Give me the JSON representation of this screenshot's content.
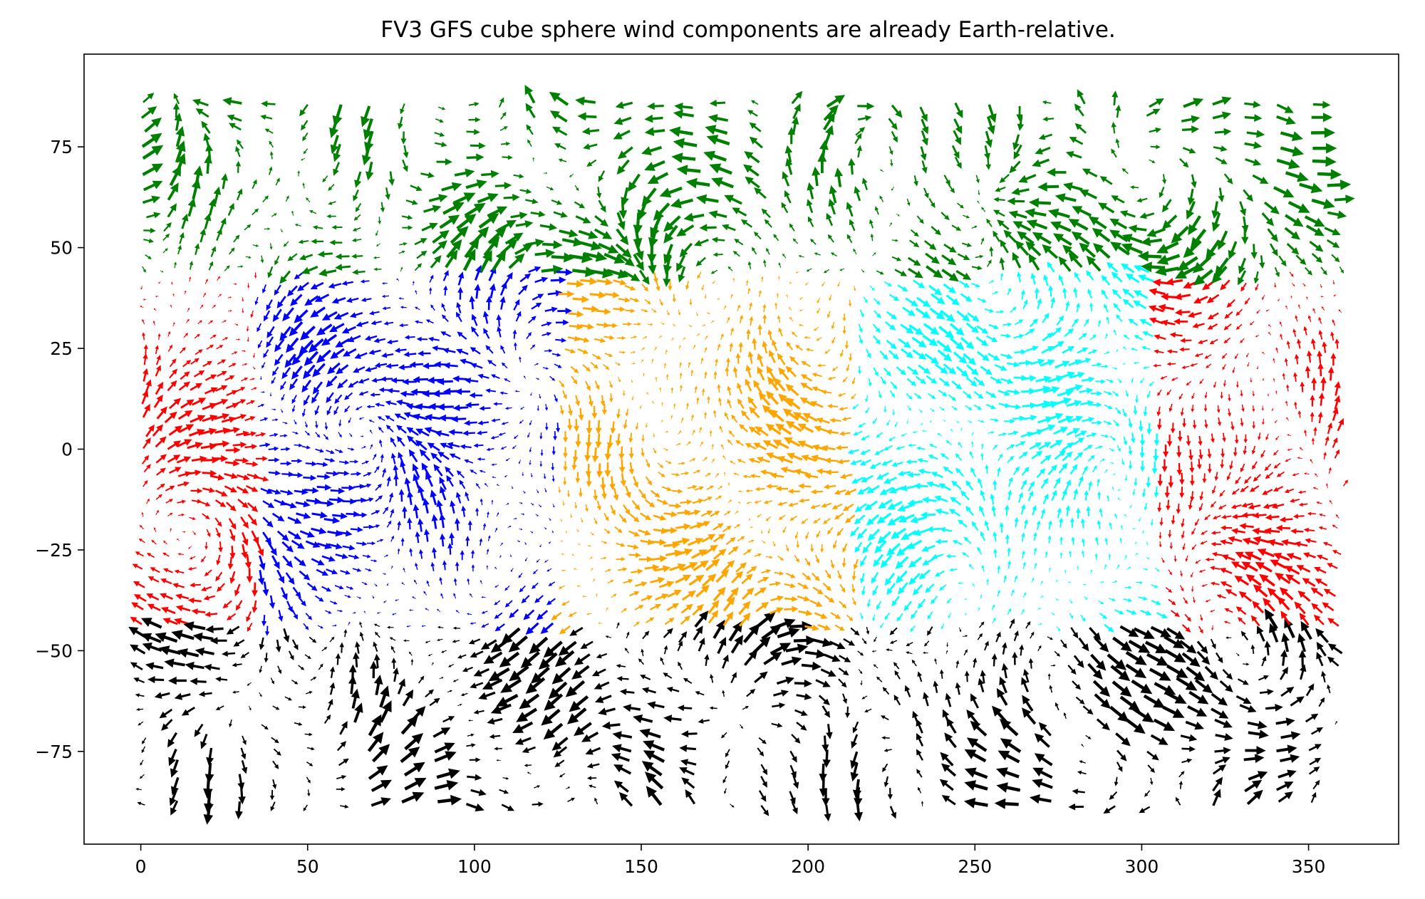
{
  "chart_data": {
    "type": "quiver",
    "title": "FV3 GFS cube sphere wind components are already Earth-relative.",
    "xlabel": "",
    "ylabel": "",
    "xlim": [
      -17,
      377
    ],
    "ylim": [
      -98,
      98
    ],
    "xticks": [
      0,
      50,
      100,
      150,
      200,
      250,
      300,
      350
    ],
    "yticks": [
      -75,
      -50,
      -25,
      0,
      25,
      50,
      75
    ],
    "xtick_labels": [
      "0",
      "50",
      "100",
      "150",
      "200",
      "250",
      "300",
      "350"
    ],
    "ytick_labels": [
      "−75",
      "−50",
      "−25",
      "0",
      "25",
      "50",
      "75"
    ],
    "grid": false,
    "legend": "none",
    "tiles": [
      {
        "tile": 1,
        "color": "#ff0000",
        "lon_range": [
          0,
          35,
          305,
          360
        ],
        "lat_range": [
          -45,
          45
        ]
      },
      {
        "tile": 2,
        "color": "#0000ff",
        "lon_range": [
          35,
          125
        ],
        "lat_range": [
          -45,
          45
        ]
      },
      {
        "tile": 3,
        "color": "#ffa500",
        "lon_range": [
          125,
          215
        ],
        "lat_range": [
          -45,
          48
        ]
      },
      {
        "tile": 4,
        "color": "#00ffff",
        "lon_range": [
          215,
          305
        ],
        "lat_range": [
          -45,
          45
        ]
      },
      {
        "tile": 5,
        "color": "#008000",
        "lon_range": [
          0,
          360
        ],
        "lat_range": [
          40,
          90
        ]
      },
      {
        "tile": 6,
        "color": "#000000",
        "lon_range": [
          0,
          360
        ],
        "lat_range": [
          -90,
          -40
        ]
      }
    ]
  }
}
